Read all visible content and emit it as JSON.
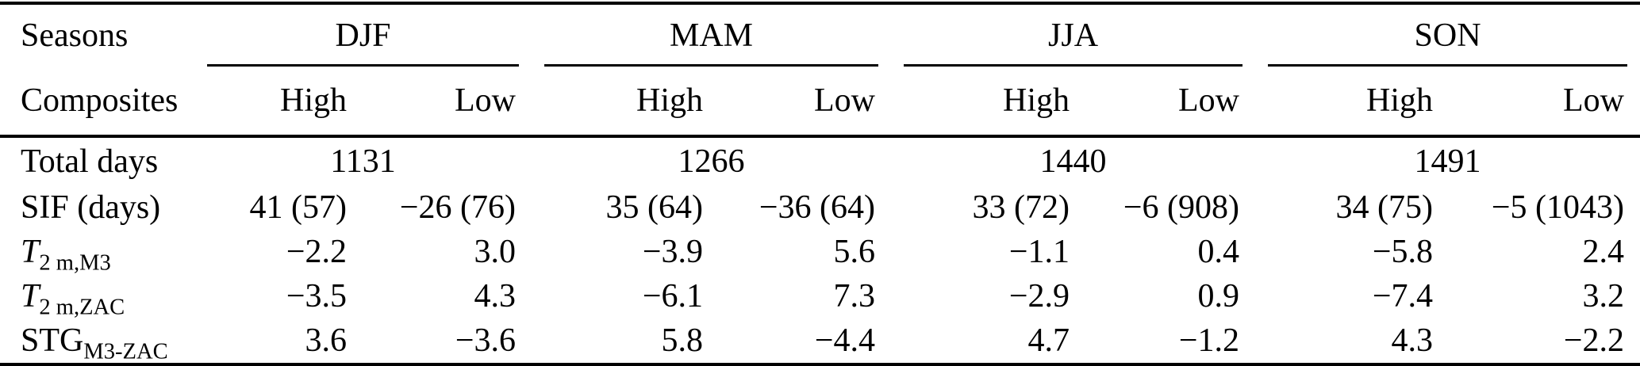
{
  "table": {
    "corner": {
      "seasons": "Seasons",
      "composites": "Composites"
    },
    "season_groups": [
      {
        "label": "DJF"
      },
      {
        "label": "MAM"
      },
      {
        "label": "JJA"
      },
      {
        "label": "SON"
      }
    ],
    "subheaders": {
      "high": "High",
      "low": "Low"
    },
    "total_days": {
      "label": "Total days",
      "values": [
        "1131",
        "1266",
        "1440",
        "1491"
      ]
    },
    "rows": [
      {
        "label_main": "SIF (days)",
        "label_sub": "",
        "italic": false,
        "values": [
          "41 (57)",
          "−26 (76)",
          "35 (64)",
          "−36 (64)",
          "33 (72)",
          "−6 (908)",
          "34 (75)",
          "−5 (1043)"
        ]
      },
      {
        "label_main": "T",
        "label_sub": "2 m,M3",
        "italic": true,
        "values": [
          "−2.2",
          "3.0",
          "−3.9",
          "5.6",
          "−1.1",
          "0.4",
          "−5.8",
          "2.4"
        ]
      },
      {
        "label_main": "T",
        "label_sub": "2 m,ZAC",
        "italic": true,
        "values": [
          "−3.5",
          "4.3",
          "−6.1",
          "7.3",
          "−2.9",
          "0.9",
          "−7.4",
          "3.2"
        ]
      },
      {
        "label_main": "STG",
        "label_sub": "M3-ZAC",
        "italic": false,
        "values": [
          "3.6",
          "−3.6",
          "5.8",
          "−4.4",
          "4.7",
          "−1.2",
          "4.3",
          "−2.2"
        ]
      }
    ],
    "colors": {
      "text": "#000000",
      "background": "#ffffff",
      "rule": "#000000"
    }
  }
}
